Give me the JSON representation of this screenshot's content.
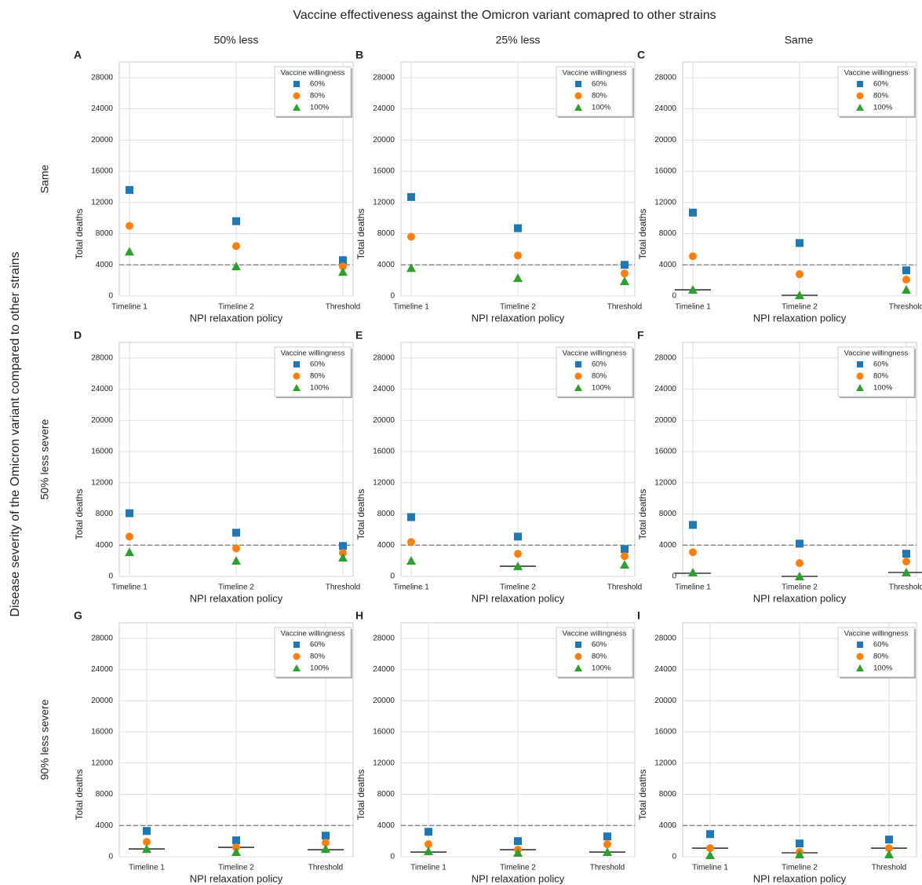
{
  "figure": {
    "title": "Vaccine effectiveness against the Omicron variant comapred to other strains",
    "column_titles": [
      "50% less",
      "25% less",
      "Same"
    ],
    "row_titles": [
      "Same",
      "50% less severe",
      "90% less severe"
    ],
    "ylabel": "Disease severity of the Omicron variant compared to other strains"
  },
  "chart_data": [
    {
      "type": "scatter",
      "panel": "A",
      "xlabel": "NPI relaxation policy",
      "ylabel": "Total deaths",
      "categories": [
        "Timeline 1",
        "Timeline 2",
        "Threshold"
      ],
      "series": [
        {
          "name": "60%",
          "color": "#1f77b4",
          "marker": "square",
          "values": [
            13600,
            9600,
            4600
          ]
        },
        {
          "name": "80%",
          "color": "#ff7f0e",
          "marker": "circle",
          "values": [
            9000,
            6400,
            3800
          ]
        },
        {
          "name": "100%",
          "color": "#2ca02c",
          "marker": "triangle",
          "values": [
            5700,
            3800,
            3100
          ]
        }
      ],
      "hlines": [
        null,
        null,
        null
      ],
      "threshold": 4000,
      "legend_title": "Vaccine willingness",
      "legend": "upper right",
      "ylim": [
        0,
        30000
      ],
      "yticks": [
        0,
        4000,
        8000,
        12000,
        16000,
        20000,
        24000,
        28000
      ],
      "grid": true
    },
    {
      "type": "scatter",
      "panel": "B",
      "xlabel": "NPI relaxation policy",
      "ylabel": "Total deaths",
      "categories": [
        "Timeline 1",
        "Timeline 2",
        "Threshold"
      ],
      "series": [
        {
          "name": "60%",
          "color": "#1f77b4",
          "marker": "square",
          "values": [
            12700,
            8700,
            4000
          ]
        },
        {
          "name": "80%",
          "color": "#ff7f0e",
          "marker": "circle",
          "values": [
            7600,
            5200,
            2900
          ]
        },
        {
          "name": "100%",
          "color": "#2ca02c",
          "marker": "triangle",
          "values": [
            3600,
            2300,
            1900
          ]
        }
      ],
      "hlines": [
        null,
        null,
        null
      ],
      "threshold": 4000,
      "legend_title": "Vaccine willingness",
      "legend": "upper right",
      "ylim": [
        0,
        30000
      ],
      "yticks": [
        0,
        4000,
        8000,
        12000,
        16000,
        20000,
        24000,
        28000
      ],
      "grid": true
    },
    {
      "type": "scatter",
      "panel": "C",
      "xlabel": "NPI relaxation policy",
      "ylabel": "Total deaths",
      "categories": [
        "Timeline 1",
        "Timeline 2",
        "Threshold"
      ],
      "series": [
        {
          "name": "60%",
          "color": "#1f77b4",
          "marker": "square",
          "values": [
            10700,
            6800,
            3300
          ]
        },
        {
          "name": "80%",
          "color": "#ff7f0e",
          "marker": "circle",
          "values": [
            5100,
            2800,
            2100
          ]
        },
        {
          "name": "100%",
          "color": "#2ca02c",
          "marker": "triangle",
          "values": [
            800,
            100,
            800
          ]
        }
      ],
      "hlines": [
        800,
        100,
        null
      ],
      "threshold": 4000,
      "legend_title": "Vaccine willingness",
      "legend": "upper right",
      "ylim": [
        0,
        30000
      ],
      "yticks": [
        0,
        4000,
        8000,
        12000,
        16000,
        20000,
        24000,
        28000
      ],
      "grid": true
    },
    {
      "type": "scatter",
      "panel": "D",
      "xlabel": "NPI relaxation policy",
      "ylabel": "Total deaths",
      "categories": [
        "Timeline 1",
        "Timeline 2",
        "Threshold"
      ],
      "series": [
        {
          "name": "60%",
          "color": "#1f77b4",
          "marker": "square",
          "values": [
            8100,
            5600,
            3900
          ]
        },
        {
          "name": "80%",
          "color": "#ff7f0e",
          "marker": "circle",
          "values": [
            5100,
            3600,
            3000
          ]
        },
        {
          "name": "100%",
          "color": "#2ca02c",
          "marker": "triangle",
          "values": [
            3100,
            2000,
            2400
          ]
        }
      ],
      "hlines": [
        null,
        null,
        null
      ],
      "threshold": 4000,
      "legend_title": "Vaccine willingness",
      "legend": "upper right",
      "ylim": [
        0,
        30000
      ],
      "yticks": [
        0,
        4000,
        8000,
        12000,
        16000,
        20000,
        24000,
        28000
      ],
      "grid": true
    },
    {
      "type": "scatter",
      "panel": "E",
      "xlabel": "NPI relaxation policy",
      "ylabel": "Total deaths",
      "categories": [
        "Timeline 1",
        "Timeline 2",
        "Threshold"
      ],
      "series": [
        {
          "name": "60%",
          "color": "#1f77b4",
          "marker": "square",
          "values": [
            7600,
            5100,
            3500
          ]
        },
        {
          "name": "80%",
          "color": "#ff7f0e",
          "marker": "circle",
          "values": [
            4400,
            2900,
            2600
          ]
        },
        {
          "name": "100%",
          "color": "#2ca02c",
          "marker": "triangle",
          "values": [
            2000,
            1300,
            1500
          ]
        }
      ],
      "hlines": [
        null,
        1300,
        null
      ],
      "threshold": 4000,
      "legend_title": "Vaccine willingness",
      "legend": "upper right",
      "ylim": [
        0,
        30000
      ],
      "yticks": [
        0,
        4000,
        8000,
        12000,
        16000,
        20000,
        24000,
        28000
      ],
      "grid": true
    },
    {
      "type": "scatter",
      "panel": "F",
      "xlabel": "NPI relaxation policy",
      "ylabel": "Total deaths",
      "categories": [
        "Timeline 1",
        "Timeline 2",
        "Threshold"
      ],
      "series": [
        {
          "name": "60%",
          "color": "#1f77b4",
          "marker": "square",
          "values": [
            6600,
            4200,
            2900
          ]
        },
        {
          "name": "80%",
          "color": "#ff7f0e",
          "marker": "circle",
          "values": [
            3100,
            1700,
            1900
          ]
        },
        {
          "name": "100%",
          "color": "#2ca02c",
          "marker": "triangle",
          "values": [
            500,
            0,
            500
          ]
        }
      ],
      "hlines": [
        400,
        0,
        500
      ],
      "threshold": 4000,
      "legend_title": "Vaccine willingness",
      "legend": "upper right",
      "ylim": [
        0,
        30000
      ],
      "yticks": [
        0,
        4000,
        8000,
        12000,
        16000,
        20000,
        24000,
        28000
      ],
      "grid": true
    },
    {
      "type": "scatter",
      "panel": "G",
      "xlabel": "NPI relaxation policy",
      "ylabel": "Total deaths",
      "categories": [
        "Timeline 1",
        "Timeline 2",
        "Threshold"
      ],
      "series": [
        {
          "name": "60%",
          "color": "#1f77b4",
          "marker": "square",
          "values": [
            3300,
            2100,
            2700
          ]
        },
        {
          "name": "80%",
          "color": "#ff7f0e",
          "marker": "circle",
          "values": [
            1900,
            1200,
            1800
          ]
        },
        {
          "name": "100%",
          "color": "#2ca02c",
          "marker": "triangle",
          "values": [
            1000,
            600,
            1000
          ]
        }
      ],
      "hlines": [
        1000,
        1200,
        900
      ],
      "threshold": 4000,
      "legend_title": "Vaccine willingness",
      "legend": "upper right",
      "ylim": [
        0,
        30000
      ],
      "yticks": [
        0,
        4000,
        8000,
        12000,
        16000,
        20000,
        24000,
        28000
      ],
      "grid": true
    },
    {
      "type": "scatter",
      "panel": "H",
      "xlabel": "NPI relaxation policy",
      "ylabel": "Total deaths",
      "categories": [
        "Timeline 1",
        "Timeline 2",
        "Threshold"
      ],
      "series": [
        {
          "name": "60%",
          "color": "#1f77b4",
          "marker": "square",
          "values": [
            3200,
            2000,
            2600
          ]
        },
        {
          "name": "80%",
          "color": "#ff7f0e",
          "marker": "circle",
          "values": [
            1600,
            900,
            1600
          ]
        },
        {
          "name": "100%",
          "color": "#2ca02c",
          "marker": "triangle",
          "values": [
            700,
            500,
            600
          ]
        }
      ],
      "hlines": [
        600,
        900,
        600
      ],
      "threshold": 4000,
      "legend_title": "Vaccine willingness",
      "legend": "upper right",
      "ylim": [
        0,
        30000
      ],
      "yticks": [
        0,
        4000,
        8000,
        12000,
        16000,
        20000,
        24000,
        28000
      ],
      "grid": true
    },
    {
      "type": "scatter",
      "panel": "I",
      "xlabel": "NPI relaxation policy",
      "ylabel": "Total deaths",
      "categories": [
        "Timeline 1",
        "Timeline 2",
        "Threshold"
      ],
      "series": [
        {
          "name": "60%",
          "color": "#1f77b4",
          "marker": "square",
          "values": [
            2900,
            1700,
            2200
          ]
        },
        {
          "name": "80%",
          "color": "#ff7f0e",
          "marker": "circle",
          "values": [
            1100,
            600,
            1100
          ]
        },
        {
          "name": "100%",
          "color": "#2ca02c",
          "marker": "triangle",
          "values": [
            200,
            300,
            300
          ]
        }
      ],
      "hlines": [
        1100,
        500,
        1100
      ],
      "threshold": 4000,
      "legend_title": "Vaccine willingness",
      "legend": "upper right",
      "ylim": [
        0,
        30000
      ],
      "yticks": [
        0,
        4000,
        8000,
        12000,
        16000,
        20000,
        24000,
        28000
      ],
      "grid": true
    }
  ]
}
